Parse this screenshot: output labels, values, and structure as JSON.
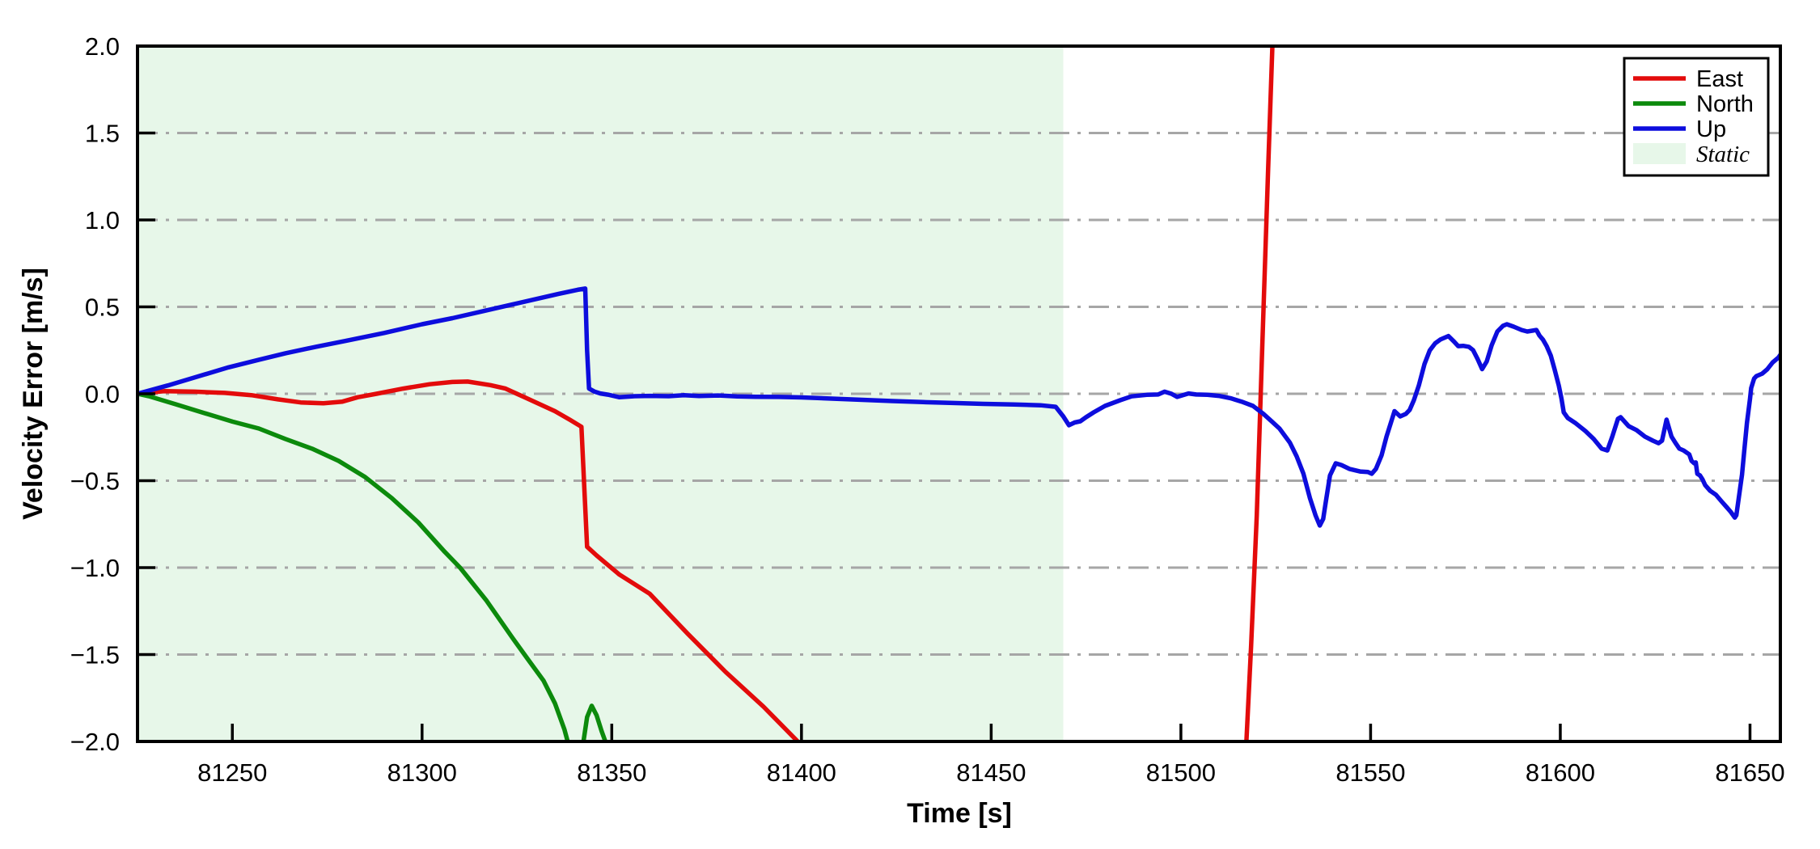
{
  "chart_data": {
    "type": "line",
    "title": "",
    "xlabel": "Time [s]",
    "ylabel": "Velocity Error [m/s]",
    "xlim": [
      81225,
      81658
    ],
    "ylim": [
      -2.0,
      2.0
    ],
    "xticks": [
      81250,
      81300,
      81350,
      81400,
      81450,
      81500,
      81550,
      81600,
      81650
    ],
    "xtick_labels": [
      "81250",
      "81300",
      "81350",
      "81400",
      "81450",
      "81500",
      "81550",
      "81600",
      "81650"
    ],
    "yticks": [
      2.0,
      1.5,
      1.0,
      0.5,
      0.0,
      -0.5,
      -1.0,
      -1.5,
      -2.0
    ],
    "ytick_labels": [
      "2.0",
      "1.5",
      "1.0",
      "0.5",
      "0.0",
      "−0.5",
      "−1.0",
      "−1.5",
      "−2.0"
    ],
    "grid": {
      "y_values": [
        1.5,
        1.0,
        0.5,
        0.0,
        -0.5,
        -1.0,
        -1.5
      ],
      "style": "dash-dot",
      "color": "#a6a6a6"
    },
    "frame_color": "#000000",
    "static_region": {
      "label": "Static",
      "x0": 81225,
      "x1": 81469,
      "color": "#e7f7e9"
    },
    "legend": {
      "position": "top-right",
      "entries": [
        "East",
        "North",
        "Up",
        "Static"
      ]
    },
    "series": [
      {
        "name": "East",
        "color": "#e30b0b",
        "segments": [
          [
            [
              81225,
              0
            ],
            [
              81232,
              0.015
            ],
            [
              81240,
              0.012
            ],
            [
              81248,
              0.005
            ],
            [
              81255,
              -0.008
            ],
            [
              81262,
              -0.032
            ],
            [
              81268,
              -0.05
            ],
            [
              81274,
              -0.055
            ],
            [
              81279,
              -0.045
            ],
            [
              81283,
              -0.02
            ],
            [
              81288,
              0
            ],
            [
              81295,
              0.03
            ],
            [
              81302,
              0.055
            ],
            [
              81308,
              0.068
            ],
            [
              81312,
              0.07
            ],
            [
              81318,
              0.05
            ],
            [
              81322,
              0.03
            ],
            [
              81327,
              -0.02
            ],
            [
              81331,
              -0.06
            ],
            [
              81335,
              -0.1
            ],
            [
              81339,
              -0.15
            ],
            [
              81342,
              -0.19
            ],
            [
              81343.5,
              -0.88
            ],
            [
              81346,
              -0.93
            ],
            [
              81352,
              -1.04
            ],
            [
              81360,
              -1.15
            ],
            [
              81370,
              -1.38
            ],
            [
              81380,
              -1.6
            ],
            [
              81390,
              -1.8
            ],
            [
              81399,
              -2.0
            ],
            [
              81401,
              -2.12
            ]
          ],
          [
            [
              81517,
              -2.12
            ],
            [
              81518.5,
              -1.45
            ],
            [
              81520,
              -0.7
            ],
            [
              81521.5,
              0.3
            ],
            [
              81523,
              1.3
            ],
            [
              81524.3,
              2.12
            ]
          ]
        ]
      },
      {
        "name": "North",
        "color": "#0c8a0c",
        "segments": [
          [
            [
              81225,
              0
            ],
            [
              81228,
              -0.014
            ],
            [
              81235,
              -0.06
            ],
            [
              81242,
              -0.107
            ],
            [
              81250,
              -0.16
            ],
            [
              81257,
              -0.2
            ],
            [
              81264,
              -0.26
            ],
            [
              81271,
              -0.316
            ],
            [
              81278,
              -0.386
            ],
            [
              81285,
              -0.479
            ],
            [
              81292,
              -0.6
            ],
            [
              81299,
              -0.74
            ],
            [
              81306,
              -0.91
            ],
            [
              81310,
              -1.0
            ],
            [
              81317,
              -1.19
            ],
            [
              81324,
              -1.41
            ],
            [
              81328,
              -1.53
            ],
            [
              81332,
              -1.65
            ],
            [
              81335,
              -1.78
            ],
            [
              81337.5,
              -1.93
            ],
            [
              81339,
              -2.05
            ],
            [
              81340,
              -2.16
            ],
            [
              81341.8,
              -2.16
            ],
            [
              81342.4,
              -2.02
            ],
            [
              81343.5,
              -1.86
            ],
            [
              81344.7,
              -1.795
            ],
            [
              81346,
              -1.85
            ],
            [
              81347.3,
              -1.94
            ],
            [
              81348.8,
              -2.03
            ],
            [
              81349.6,
              -2.16
            ]
          ]
        ]
      },
      {
        "name": "Up",
        "color": "#0d0ddd",
        "segments": [
          [
            [
              81225,
              0
            ],
            [
              81233,
              0.048
            ],
            [
              81241,
              0.1
            ],
            [
              81249,
              0.152
            ],
            [
              81257,
              0.196
            ],
            [
              81264,
              0.233
            ],
            [
              81272,
              0.27
            ],
            [
              81280,
              0.305
            ],
            [
              81290,
              0.35
            ],
            [
              81300,
              0.4
            ],
            [
              81308,
              0.435
            ],
            [
              81316,
              0.475
            ],
            [
              81324,
              0.515
            ],
            [
              81331,
              0.55
            ],
            [
              81336,
              0.575
            ],
            [
              81341,
              0.598
            ],
            [
              81343,
              0.605
            ],
            [
              81343.5,
              0.25
            ],
            [
              81344,
              0.03
            ],
            [
              81345.5,
              0.012
            ],
            [
              81347,
              0.002
            ],
            [
              81349,
              -0.005
            ],
            [
              81352,
              -0.02
            ],
            [
              81356,
              -0.014
            ],
            [
              81360,
              -0.012
            ],
            [
              81365,
              -0.014
            ],
            [
              81369,
              -0.008
            ],
            [
              81373,
              -0.013
            ],
            [
              81378,
              -0.01
            ],
            [
              81383,
              -0.015
            ],
            [
              81388,
              -0.017
            ],
            [
              81394,
              -0.018
            ],
            [
              81400,
              -0.021
            ],
            [
              81408,
              -0.028
            ],
            [
              81416,
              -0.035
            ],
            [
              81424,
              -0.042
            ],
            [
              81432,
              -0.048
            ],
            [
              81440,
              -0.053
            ],
            [
              81448,
              -0.058
            ],
            [
              81456,
              -0.062
            ],
            [
              81463,
              -0.066
            ],
            [
              81467,
              -0.075
            ],
            [
              81469,
              -0.13
            ],
            [
              81470.5,
              -0.181
            ],
            [
              81472,
              -0.165
            ],
            [
              81473.5,
              -0.158
            ],
            [
              81475,
              -0.135
            ],
            [
              81477,
              -0.107
            ],
            [
              81480,
              -0.07
            ],
            [
              81484,
              -0.037
            ],
            [
              81487,
              -0.015
            ],
            [
              81491,
              -0.006
            ],
            [
              81494,
              -0.004
            ],
            [
              81495.7,
              0.012
            ],
            [
              81497.5,
              0
            ],
            [
              81499,
              -0.018
            ],
            [
              81500.5,
              -0.008
            ],
            [
              81502,
              0.002
            ],
            [
              81504,
              -0.004
            ],
            [
              81507,
              -0.006
            ],
            [
              81510,
              -0.012
            ],
            [
              81513,
              -0.025
            ],
            [
              81516,
              -0.045
            ],
            [
              81519,
              -0.07
            ],
            [
              81521.7,
              -0.115
            ],
            [
              81524,
              -0.16
            ],
            [
              81526,
              -0.2
            ],
            [
              81528.7,
              -0.28
            ],
            [
              81530.5,
              -0.36
            ],
            [
              81532.3,
              -0.46
            ],
            [
              81534,
              -0.6
            ],
            [
              81535.5,
              -0.7
            ],
            [
              81536.6,
              -0.758
            ],
            [
              81537.5,
              -0.72
            ],
            [
              81538.2,
              -0.62
            ],
            [
              81539.3,
              -0.47
            ],
            [
              81540.8,
              -0.4
            ],
            [
              81542.3,
              -0.41
            ],
            [
              81544.4,
              -0.432
            ],
            [
              81547.2,
              -0.447
            ],
            [
              81549.3,
              -0.45
            ],
            [
              81550.3,
              -0.46
            ],
            [
              81551.4,
              -0.432
            ],
            [
              81552.9,
              -0.354
            ],
            [
              81554.2,
              -0.246
            ],
            [
              81556.3,
              -0.1
            ],
            [
              81557.8,
              -0.13
            ],
            [
              81559.3,
              -0.116
            ],
            [
              81560.3,
              -0.093
            ],
            [
              81561.4,
              -0.037
            ],
            [
              81562.7,
              0.047
            ],
            [
              81564.2,
              0.17
            ],
            [
              81565.6,
              0.25
            ],
            [
              81567,
              0.29
            ],
            [
              81568.4,
              0.312
            ],
            [
              81570.5,
              0.332
            ],
            [
              81572,
              0.3
            ],
            [
              81573.1,
              0.274
            ],
            [
              81574.4,
              0.276
            ],
            [
              81575.9,
              0.27
            ],
            [
              81577,
              0.251
            ],
            [
              81578.2,
              0.2
            ],
            [
              81579.4,
              0.142
            ],
            [
              81580.6,
              0.186
            ],
            [
              81581.9,
              0.279
            ],
            [
              81583.4,
              0.358
            ],
            [
              81584.9,
              0.391
            ],
            [
              81585.9,
              0.4
            ],
            [
              81587.7,
              0.386
            ],
            [
              81589.8,
              0.367
            ],
            [
              81591.3,
              0.358
            ],
            [
              81592.6,
              0.363
            ],
            [
              81593.7,
              0.367
            ],
            [
              81594.5,
              0.335
            ],
            [
              81595.4,
              0.312
            ],
            [
              81596.4,
              0.274
            ],
            [
              81597.5,
              0.219
            ],
            [
              81598.5,
              0.14
            ],
            [
              81599.6,
              0.047
            ],
            [
              81600.3,
              -0.028
            ],
            [
              81600.9,
              -0.107
            ],
            [
              81602,
              -0.14
            ],
            [
              81603.9,
              -0.167
            ],
            [
              81606.6,
              -0.214
            ],
            [
              81608.8,
              -0.26
            ],
            [
              81610.9,
              -0.316
            ],
            [
              81612.4,
              -0.326
            ],
            [
              81613.7,
              -0.246
            ],
            [
              81615.2,
              -0.144
            ],
            [
              81615.9,
              -0.135
            ],
            [
              81618,
              -0.186
            ],
            [
              81620.1,
              -0.209
            ],
            [
              81622.3,
              -0.246
            ],
            [
              81624.4,
              -0.27
            ],
            [
              81625.9,
              -0.284
            ],
            [
              81626.8,
              -0.27
            ],
            [
              81628,
              -0.149
            ],
            [
              81629.3,
              -0.246
            ],
            [
              81630.4,
              -0.284
            ],
            [
              81631.4,
              -0.316
            ],
            [
              81632.5,
              -0.326
            ],
            [
              81634,
              -0.349
            ],
            [
              81634.6,
              -0.386
            ],
            [
              81635.3,
              -0.4
            ],
            [
              81635.7,
              -0.395
            ],
            [
              81636.1,
              -0.46
            ],
            [
              81636.8,
              -0.47
            ],
            [
              81637.5,
              -0.493
            ],
            [
              81638.2,
              -0.526
            ],
            [
              81639.5,
              -0.558
            ],
            [
              81641,
              -0.581
            ],
            [
              81642.5,
              -0.619
            ],
            [
              81643.8,
              -0.651
            ],
            [
              81644.9,
              -0.679
            ],
            [
              81646,
              -0.712
            ],
            [
              81646.4,
              -0.698
            ],
            [
              81647,
              -0.605
            ],
            [
              81647.9,
              -0.465
            ],
            [
              81648.5,
              -0.326
            ],
            [
              81649.2,
              -0.167
            ],
            [
              81650,
              -0.028
            ],
            [
              81650.3,
              0.033
            ],
            [
              81651.1,
              0.088
            ],
            [
              81651.7,
              0.102
            ],
            [
              81653.2,
              0.116
            ],
            [
              81654.5,
              0.14
            ],
            [
              81656,
              0.181
            ],
            [
              81657.5,
              0.209
            ],
            [
              81658.1,
              0.228
            ]
          ]
        ]
      }
    ]
  }
}
